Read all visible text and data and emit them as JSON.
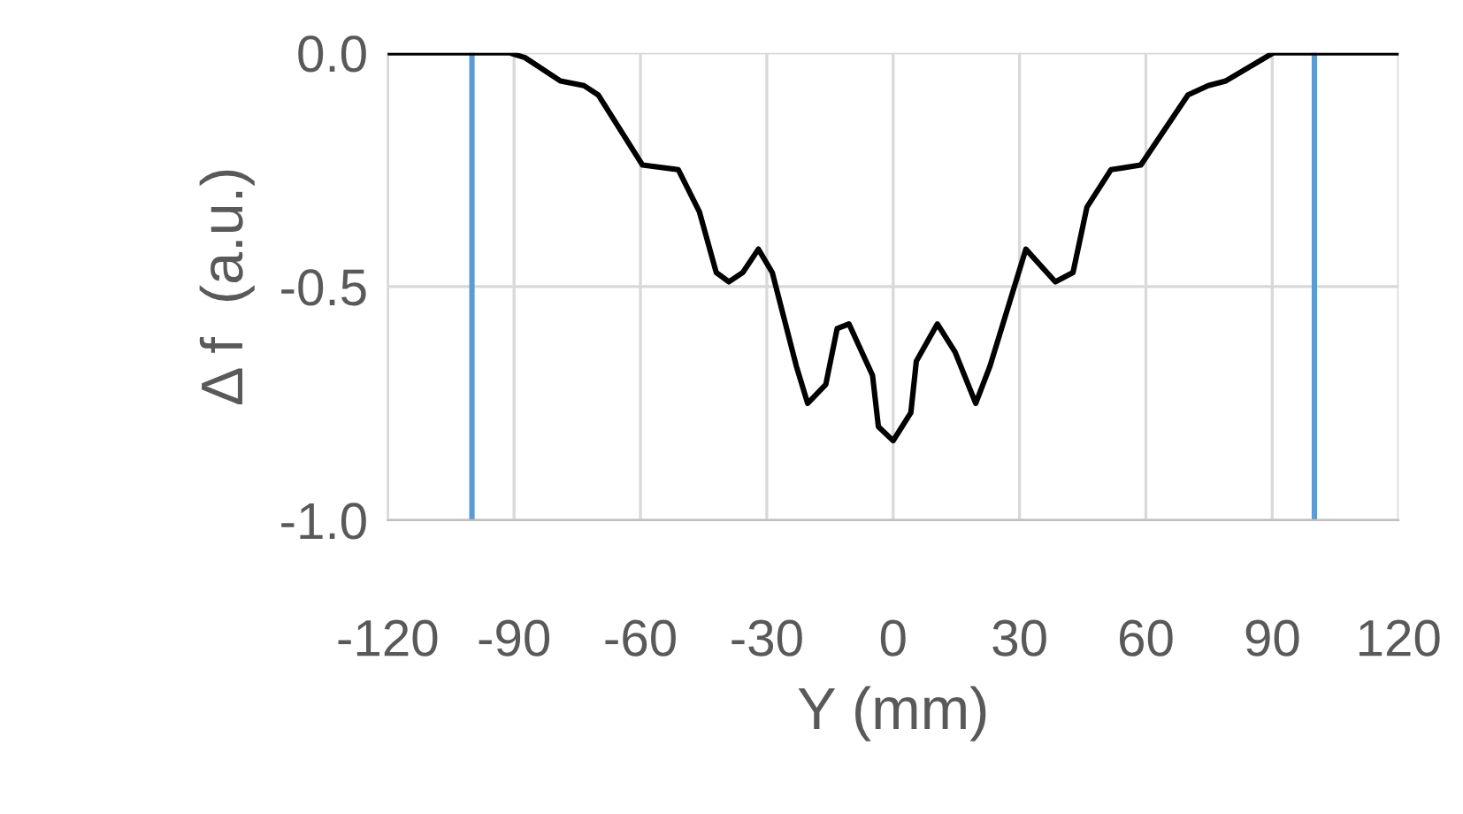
{
  "chart_data": {
    "type": "line",
    "xlabel": "Y (mm)",
    "ylabel": "Δ f  (a.u.)",
    "series": [
      {
        "color": "#000000",
        "x": [
          -120,
          -91,
          -87.4,
          -79,
          -73.4,
          -70,
          -59.5,
          -51,
          -46,
          -42,
          -39,
          -35.7,
          -32,
          -28.7,
          -23,
          -20.3,
          -16,
          -13.3,
          -10.5,
          -4.9,
          -3.5,
          0,
          4.2,
          5.5,
          10.5,
          14.7,
          19.6,
          23,
          31.5,
          38.5,
          42.7,
          46,
          51.7,
          58.8,
          70,
          74.8,
          79,
          90.2,
          120
        ],
        "values": [
          0,
          0,
          -0.01,
          -0.06,
          -0.07,
          -0.09,
          -0.24,
          -0.25,
          -0.34,
          -0.47,
          -0.49,
          -0.47,
          -0.42,
          -0.47,
          -0.67,
          -0.75,
          -0.71,
          -0.59,
          -0.58,
          -0.69,
          -0.8,
          -0.83,
          -0.77,
          -0.66,
          -0.58,
          -0.64,
          -0.75,
          -0.67,
          -0.42,
          -0.49,
          -0.47,
          -0.33,
          -0.25,
          -0.24,
          -0.09,
          -0.07,
          -0.06,
          0,
          0
        ]
      }
    ],
    "xlim": [
      -120,
      120
    ],
    "xticks": [
      -120,
      -90,
      -60,
      -30,
      0,
      30,
      60,
      90,
      120
    ],
    "ylim": [
      -1.0,
      0.0
    ],
    "yticks": [
      {
        "value": -1.0,
        "label": "-1.0"
      },
      {
        "value": -0.5,
        "label": "-0.5"
      },
      {
        "value": 0.0,
        "label": "0.0"
      }
    ],
    "ref_lines": [
      {
        "axis": "x",
        "value": -100,
        "color": "#5b9bd5"
      },
      {
        "axis": "x",
        "value": 100,
        "color": "#5b9bd5"
      }
    ],
    "grid": true,
    "marker": "none",
    "line_style": "solid",
    "legend": false
  }
}
